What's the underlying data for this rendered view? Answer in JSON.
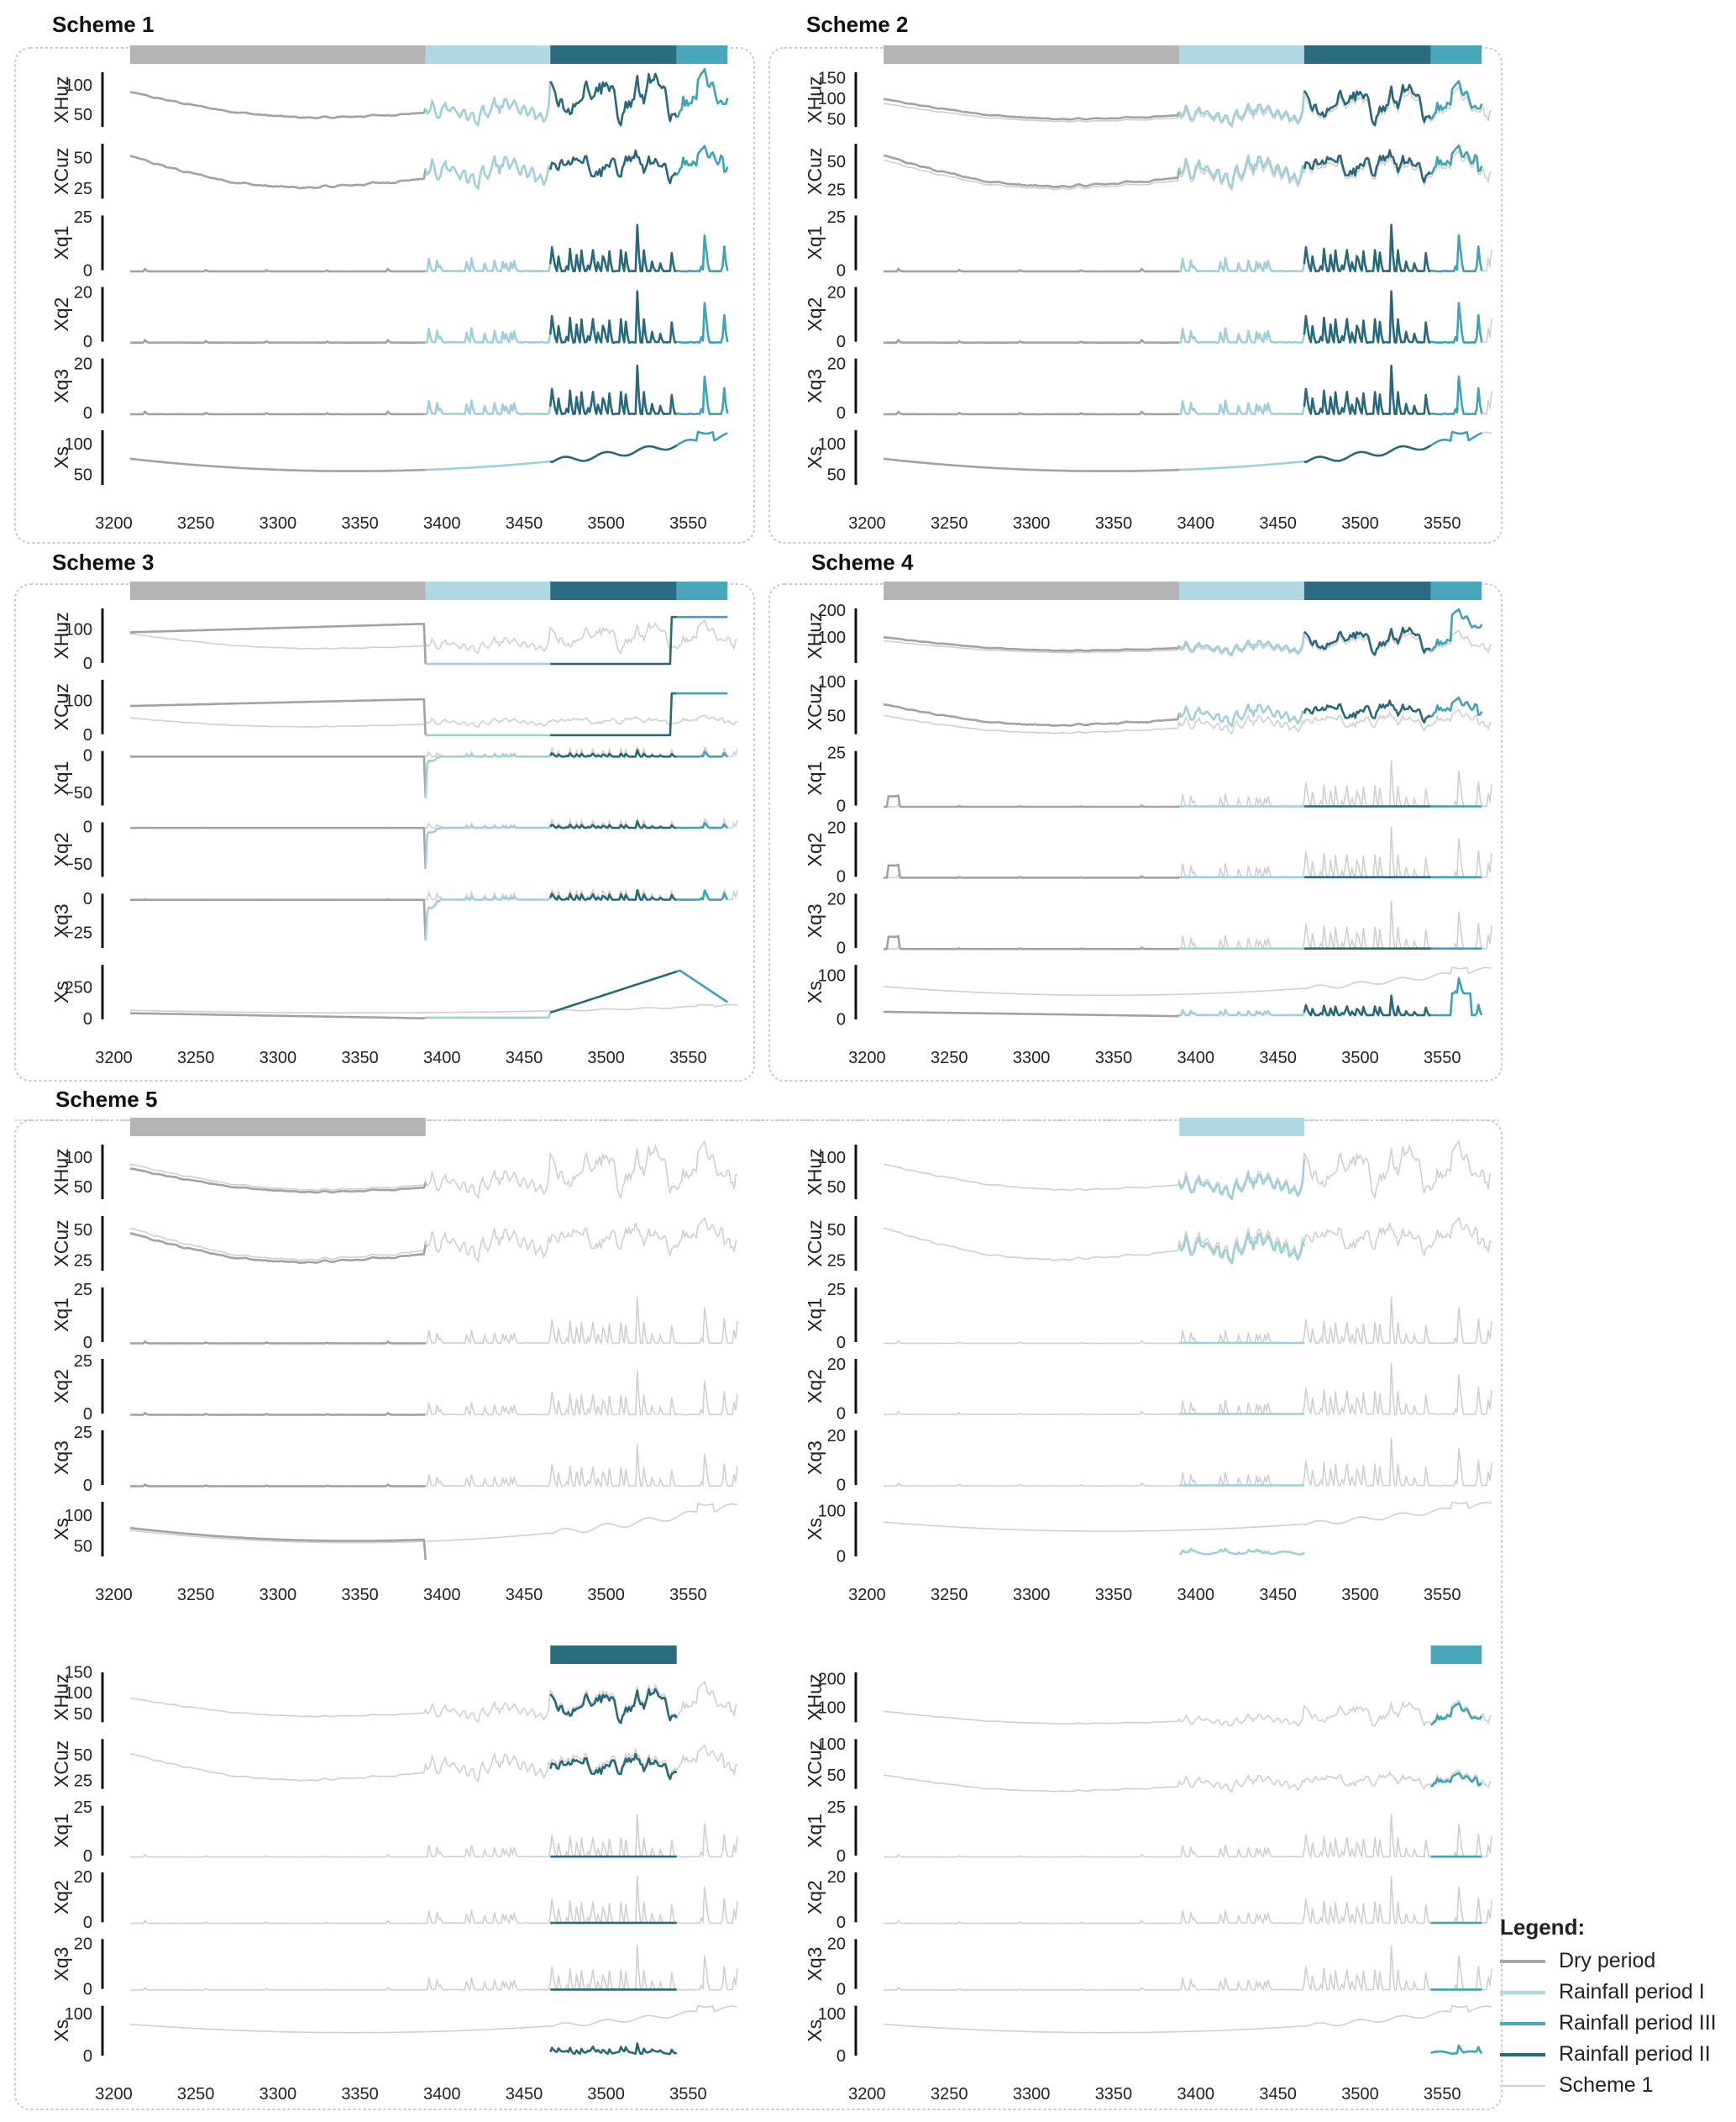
{
  "titles": [
    "Scheme 1",
    "Scheme 2",
    "Scheme 3",
    "Scheme 4",
    "Scheme 5"
  ],
  "legend": {
    "title": "Legend:",
    "items": [
      {
        "label": "Dry period",
        "color": "#a8a8a8",
        "width": "4"
      },
      {
        "label": "Rainfall period I",
        "color": "#a9d8e1",
        "width": "4"
      },
      {
        "label": "Rainfall period III",
        "color": "#4aa9bd",
        "width": "4"
      },
      {
        "label": "Rainfall period II",
        "color": "#27687d",
        "width": "4"
      },
      {
        "label": "Scheme 1",
        "color": "#d0d0d0",
        "width": "2"
      }
    ]
  },
  "chart_data": {
    "type": "line",
    "x_range": [
      3210,
      3580
    ],
    "x_ticks": [
      3200,
      3250,
      3300,
      3350,
      3400,
      3450,
      3500,
      3550
    ],
    "variables": [
      "XHuz",
      "XCuz",
      "Xq1",
      "Xq2",
      "Xq3",
      "Xs"
    ],
    "periods": [
      {
        "name": "Dry period",
        "start": 3210,
        "end": 3390,
        "color": "#b4b4b4"
      },
      {
        "name": "Rainfall period I",
        "start": 3390,
        "end": 3466,
        "color": "#aed9e2"
      },
      {
        "name": "Rainfall period II",
        "start": 3466,
        "end": 3543,
        "color": "#2b6b80"
      },
      {
        "name": "Rainfall period III",
        "start": 3543,
        "end": 3574,
        "color": "#48a7bb"
      }
    ],
    "period_line_colors": [
      "#a2a2a2",
      "#9fd0da",
      "#27687d",
      "#3fa2b6"
    ],
    "reference_color": "#cfcfcf",
    "panels": [
      {
        "scheme": 1,
        "periods_shown": [
          0,
          1,
          2,
          3
        ],
        "mode": "all",
        "subplots": [
          {
            "var": "XHuz",
            "ylim": [
              25,
              130
            ],
            "ticks": [
              50,
              100
            ]
          },
          {
            "var": "XCuz",
            "ylim": [
              15,
              65
            ],
            "ticks": [
              25,
              50
            ]
          },
          {
            "var": "Xq1",
            "ylim": [
              -1,
              28
            ],
            "ticks": [
              0,
              25
            ]
          },
          {
            "var": "Xq2",
            "ylim": [
              -1,
              24
            ],
            "ticks": [
              0,
              20
            ]
          },
          {
            "var": "Xq3",
            "ylim": [
              -1,
              24
            ],
            "ticks": [
              0,
              20
            ]
          },
          {
            "var": "Xs",
            "ylim": [
              30,
              130
            ],
            "ticks": [
              50,
              100
            ]
          }
        ]
      },
      {
        "scheme": 2,
        "periods_shown": [
          0,
          1,
          2,
          3
        ],
        "mode": "all",
        "subplots": [
          {
            "var": "XHuz",
            "ylim": [
              25,
              175
            ],
            "ticks": [
              50,
              100,
              150
            ]
          },
          {
            "var": "XCuz",
            "ylim": [
              15,
              70
            ],
            "ticks": [
              25,
              50
            ]
          },
          {
            "var": "Xq1",
            "ylim": [
              -1,
              28
            ],
            "ticks": [
              0,
              25
            ]
          },
          {
            "var": "Xq2",
            "ylim": [
              -1,
              24
            ],
            "ticks": [
              0,
              20
            ]
          },
          {
            "var": "Xq3",
            "ylim": [
              -1,
              24
            ],
            "ticks": [
              0,
              20
            ]
          },
          {
            "var": "Xs",
            "ylim": [
              30,
              130
            ],
            "ticks": [
              50,
              100
            ]
          }
        ]
      },
      {
        "scheme": 3,
        "periods_shown": [
          0,
          1,
          2,
          3
        ],
        "mode": "all",
        "subplots": [
          {
            "var": "XHuz",
            "ylim": [
              -5,
              175
            ],
            "ticks": [
              0,
              100
            ]
          },
          {
            "var": "XCuz",
            "ylim": [
              -5,
              175
            ],
            "ticks": [
              0,
              100
            ]
          },
          {
            "var": "Xq1",
            "ylim": [
              -70,
              12
            ],
            "ticks": [
              -50,
              0
            ]
          },
          {
            "var": "Xq2",
            "ylim": [
              -70,
              12
            ],
            "ticks": [
              -50,
              0
            ]
          },
          {
            "var": "Xq3",
            "ylim": [
              -38,
              7
            ],
            "ticks": [
              -25,
              0
            ]
          },
          {
            "var": "Xs",
            "ylim": [
              -20,
              460
            ],
            "ticks": [
              0,
              250
            ]
          }
        ]
      },
      {
        "scheme": 4,
        "periods_shown": [
          0,
          1,
          2,
          3
        ],
        "mode": "all",
        "subplots": [
          {
            "var": "XHuz",
            "ylim": [
              -5,
              225
            ],
            "ticks": [
              100,
              200
            ]
          },
          {
            "var": "XCuz",
            "ylim": [
              20,
              110
            ],
            "ticks": [
              50,
              100
            ]
          },
          {
            "var": "Xq1",
            "ylim": [
              -1,
              28
            ],
            "ticks": [
              0,
              25
            ]
          },
          {
            "var": "Xq2",
            "ylim": [
              -1,
              24
            ],
            "ticks": [
              0,
              20
            ]
          },
          {
            "var": "Xq3",
            "ylim": [
              -1,
              24
            ],
            "ticks": [
              0,
              20
            ]
          },
          {
            "var": "Xs",
            "ylim": [
              -5,
              135
            ],
            "ticks": [
              0,
              100
            ]
          }
        ]
      },
      {
        "scheme": 5,
        "periods_shown": [
          0
        ],
        "mode": "single",
        "subplots": [
          {
            "var": "XHuz",
            "ylim": [
              25,
              130
            ],
            "ticks": [
              50,
              100
            ]
          },
          {
            "var": "XCuz",
            "ylim": [
              15,
              65
            ],
            "ticks": [
              25,
              50
            ]
          },
          {
            "var": "Xq1",
            "ylim": [
              -1,
              28
            ],
            "ticks": [
              0,
              25
            ]
          },
          {
            "var": "Xq2",
            "ylim": [
              -1,
              28
            ],
            "ticks": [
              0,
              25
            ]
          },
          {
            "var": "Xq3",
            "ylim": [
              -1,
              28
            ],
            "ticks": [
              0,
              25
            ]
          },
          {
            "var": "Xs",
            "ylim": [
              30,
              130
            ],
            "ticks": [
              50,
              100
            ]
          }
        ]
      },
      {
        "scheme": 5,
        "periods_shown": [
          1
        ],
        "mode": "single",
        "subplots": [
          {
            "var": "XHuz",
            "ylim": [
              25,
              130
            ],
            "ticks": [
              50,
              100
            ]
          },
          {
            "var": "XCuz",
            "ylim": [
              15,
              65
            ],
            "ticks": [
              25,
              50
            ]
          },
          {
            "var": "Xq1",
            "ylim": [
              -1,
              28
            ],
            "ticks": [
              0,
              25
            ]
          },
          {
            "var": "Xq2",
            "ylim": [
              -1,
              24
            ],
            "ticks": [
              0,
              20
            ]
          },
          {
            "var": "Xq3",
            "ylim": [
              -1,
              24
            ],
            "ticks": [
              0,
              20
            ]
          },
          {
            "var": "Xs",
            "ylim": [
              -5,
              130
            ],
            "ticks": [
              0,
              100
            ]
          }
        ]
      },
      {
        "scheme": 5,
        "periods_shown": [
          2
        ],
        "mode": "single",
        "subplots": [
          {
            "var": "XHuz",
            "ylim": [
              25,
              160
            ],
            "ticks": [
              50,
              100,
              150
            ]
          },
          {
            "var": "XCuz",
            "ylim": [
              15,
              70
            ],
            "ticks": [
              25,
              50
            ]
          },
          {
            "var": "Xq1",
            "ylim": [
              -1,
              28
            ],
            "ticks": [
              0,
              25
            ]
          },
          {
            "var": "Xq2",
            "ylim": [
              -1,
              24
            ],
            "ticks": [
              0,
              20
            ]
          },
          {
            "var": "Xq3",
            "ylim": [
              -1,
              24
            ],
            "ticks": [
              0,
              20
            ]
          },
          {
            "var": "Xs",
            "ylim": [
              -5,
              130
            ],
            "ticks": [
              0,
              100
            ]
          }
        ]
      },
      {
        "scheme": 5,
        "periods_shown": [
          3
        ],
        "mode": "single",
        "subplots": [
          {
            "var": "XHuz",
            "ylim": [
              40,
              240
            ],
            "ticks": [
              100,
              200
            ]
          },
          {
            "var": "XCuz",
            "ylim": [
              25,
              115
            ],
            "ticks": [
              50,
              100
            ]
          },
          {
            "var": "Xq1",
            "ylim": [
              -1,
              28
            ],
            "ticks": [
              0,
              25
            ]
          },
          {
            "var": "Xq2",
            "ylim": [
              -1,
              24
            ],
            "ticks": [
              0,
              20
            ]
          },
          {
            "var": "Xq3",
            "ylim": [
              -1,
              24
            ],
            "ticks": [
              0,
              20
            ]
          },
          {
            "var": "Xs",
            "ylim": [
              -5,
              130
            ],
            "ticks": [
              0,
              100
            ]
          }
        ]
      }
    ]
  }
}
